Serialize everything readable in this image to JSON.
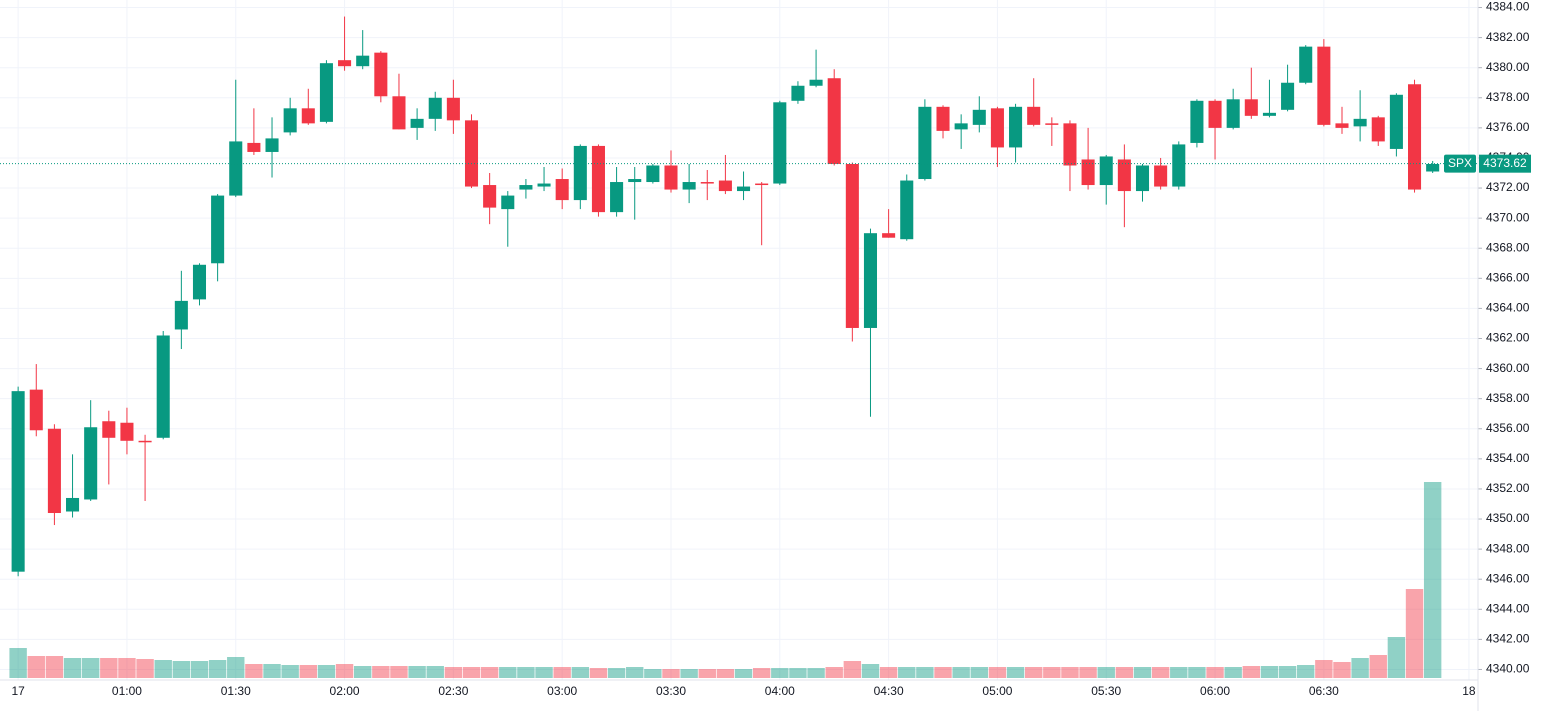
{
  "chart_data": {
    "type": "candlestick",
    "symbol": "SPX",
    "last_price": 4373.62,
    "last_price_label": "4373.62",
    "up_color": "#089981",
    "down_color": "#f23645",
    "grid": true,
    "xlim": [
      -1,
      80.5
    ],
    "ylim": [
      4339.3,
      4384.5
    ],
    "xticks": [
      {
        "value": 0,
        "label": "17"
      },
      {
        "value": 6,
        "label": "01:00"
      },
      {
        "value": 12,
        "label": "01:30"
      },
      {
        "value": 18,
        "label": "02:00"
      },
      {
        "value": 24,
        "label": "02:30"
      },
      {
        "value": 30,
        "label": "03:00"
      },
      {
        "value": 36,
        "label": "03:30"
      },
      {
        "value": 42,
        "label": "04:00"
      },
      {
        "value": 48,
        "label": "04:30"
      },
      {
        "value": 54,
        "label": "05:00"
      },
      {
        "value": 60,
        "label": "05:30"
      },
      {
        "value": 66,
        "label": "06:00"
      },
      {
        "value": 72,
        "label": "06:30"
      },
      {
        "value": 80,
        "label": "18"
      }
    ],
    "yticks": [
      {
        "value": 4340,
        "label": "4340.00"
      },
      {
        "value": 4342,
        "label": "4342.00"
      },
      {
        "value": 4344,
        "label": "4344.00"
      },
      {
        "value": 4346,
        "label": "4346.00"
      },
      {
        "value": 4348,
        "label": "4348.00"
      },
      {
        "value": 4350,
        "label": "4350.00"
      },
      {
        "value": 4352,
        "label": "4352.00"
      },
      {
        "value": 4354,
        "label": "4354.00"
      },
      {
        "value": 4356,
        "label": "4356.00"
      },
      {
        "value": 4358,
        "label": "4358.00"
      },
      {
        "value": 4360,
        "label": "4360.00"
      },
      {
        "value": 4362,
        "label": "4362.00"
      },
      {
        "value": 4364,
        "label": "4364.00"
      },
      {
        "value": 4366,
        "label": "4366.00"
      },
      {
        "value": 4368,
        "label": "4368.00"
      },
      {
        "value": 4370,
        "label": "4370.00"
      },
      {
        "value": 4372,
        "label": "4372.00"
      },
      {
        "value": 4374,
        "label": "4374.00"
      },
      {
        "value": 4376,
        "label": "4376.00"
      },
      {
        "value": 4378,
        "label": "4378.00"
      },
      {
        "value": 4380,
        "label": "4380.00"
      },
      {
        "value": 4382,
        "label": "4382.00"
      },
      {
        "value": 4384,
        "label": "4384.00"
      }
    ],
    "open": [
      4346.5,
      4358.6,
      4356,
      4350.5,
      4351.3,
      4356.5,
      4356.4,
      4355.2,
      4355.4,
      4362.6,
      4364.6,
      4367,
      4371.5,
      4375,
      4374.4,
      4375.7,
      4377.3,
      4376.4,
      4380.5,
      4380.1,
      4381,
      4378.1,
      4376,
      4376.6,
      4378,
      4376.5,
      4372.2,
      4370.6,
      4371.9,
      4372.1,
      4372.6,
      4371.2,
      4374.8,
      4370.4,
      4372.4,
      4372.4,
      4373.5,
      4371.9,
      4372.4,
      4372.5,
      4371.8,
      4372.3,
      4372.3,
      4377.8,
      4378.8,
      4379.3,
      4373.6,
      4362.7,
      4369,
      4368.6,
      4372.6,
      4377.4,
      4375.9,
      4376.2,
      4377.3,
      4374.7,
      4377.4,
      4376.3,
      4376.3,
      4373.9,
      4372.2,
      4373.9,
      4371.8,
      4373.5,
      4372.1,
      4375,
      4377.8,
      4376,
      4377.9,
      4376.8,
      4377.2,
      4379,
      4381.4,
      4376.3,
      4376.1,
      4376.7,
      4374.6,
      4378.9,
      4373.1
    ],
    "high": [
      4358.8,
      4360.3,
      4356.3,
      4354.3,
      4357.9,
      4357.2,
      4357.4,
      4355.6,
      4362.5,
      4366.5,
      4367,
      4371.6,
      4379.2,
      4377.3,
      4376.7,
      4378,
      4378.6,
      4380.5,
      4383.4,
      4382.5,
      4381.1,
      4379.6,
      4377.3,
      4378.4,
      4379.2,
      4376.9,
      4373,
      4371.8,
      4372.6,
      4373.4,
      4373.3,
      4374.9,
      4374.9,
      4373.4,
      4373.4,
      4373.6,
      4374.5,
      4373.6,
      4373.2,
      4374.2,
      4373.1,
      4372.4,
      4377.8,
      4379.1,
      4381.2,
      4379.9,
      4373.7,
      4369.3,
      4370.6,
      4372.9,
      4377.9,
      4377.5,
      4376.9,
      4378.1,
      4377.4,
      4377.6,
      4379.3,
      4376.7,
      4376.5,
      4376,
      4374.2,
      4374.9,
      4373.6,
      4374,
      4375.1,
      4377.9,
      4377.9,
      4378.6,
      4380,
      4379.2,
      4380.2,
      4381.5,
      4381.9,
      4377.4,
      4378.5,
      4376.8,
      4378.3,
      4379.2,
      4373.8
    ],
    "low": [
      4346.2,
      4355.5,
      4349.6,
      4350.1,
      4351.2,
      4352.3,
      4354.3,
      4351.2,
      4355.3,
      4361.3,
      4364.2,
      4365.8,
      4371.4,
      4374.2,
      4372.7,
      4375.5,
      4376.2,
      4376.3,
      4379.8,
      4379.9,
      4377.7,
      4375.9,
      4375.2,
      4375.8,
      4375.6,
      4372,
      4369.6,
      4368.1,
      4371.3,
      4371.8,
      4370.6,
      4370.6,
      4370.1,
      4370.1,
      4369.9,
      4372.3,
      4371.7,
      4371,
      4371.2,
      4371.6,
      4371.2,
      4368.2,
      4372.2,
      4377.6,
      4378.7,
      4373.5,
      4361.8,
      4356.8,
      4368.7,
      4368.5,
      4372.5,
      4375.3,
      4374.6,
      4375.7,
      4373.4,
      4373.7,
      4376.1,
      4374.8,
      4371.8,
      4371.9,
      4370.9,
      4369.4,
      4371.1,
      4371.9,
      4371.9,
      4374.7,
      4373.9,
      4375.9,
      4376.6,
      4376.7,
      4377.1,
      4378.9,
      4376.1,
      4375.6,
      4375.1,
      4374.8,
      4374.1,
      4371.7,
      4373
    ],
    "close": [
      4358.5,
      4355.9,
      4350.4,
      4351.4,
      4356.1,
      4355.4,
      4355.2,
      4355.1,
      4362.2,
      4364.5,
      4366.9,
      4371.5,
      4375.1,
      4374.4,
      4375.3,
      4377.3,
      4376.3,
      4380.3,
      4380.1,
      4380.8,
      4378.1,
      4375.9,
      4376.6,
      4378,
      4376.5,
      4372.1,
      4370.7,
      4371.5,
      4372.2,
      4372.3,
      4371.2,
      4374.8,
      4370.4,
      4372.4,
      4372.6,
      4373.5,
      4371.9,
      4372.4,
      4372.3,
      4371.8,
      4372.1,
      4372.2,
      4377.7,
      4378.8,
      4379.2,
      4373.6,
      4362.7,
      4369,
      4368.7,
      4372.5,
      4377.4,
      4375.8,
      4376.3,
      4377.2,
      4374.7,
      4377.4,
      4376.2,
      4376.2,
      4373.5,
      4372.2,
      4374.1,
      4371.8,
      4373.5,
      4372.1,
      4374.9,
      4377.8,
      4376,
      4377.9,
      4376.8,
      4377,
      4379,
      4381.4,
      4376.2,
      4376,
      4376.6,
      4375.1,
      4378.2,
      4371.9,
      4373.6
    ],
    "volume": [
      30,
      22,
      22,
      20,
      20,
      20,
      20,
      19,
      18,
      17,
      17,
      18,
      21,
      14,
      14,
      13,
      13,
      13,
      14,
      12,
      12,
      12,
      12,
      12,
      11,
      11,
      11,
      11,
      11,
      11,
      11,
      11,
      10,
      10,
      11,
      9,
      9,
      9,
      9,
      9,
      9,
      10,
      10,
      10,
      10,
      11,
      17,
      14,
      11,
      11,
      11,
      11,
      11,
      11,
      11,
      11,
      11,
      11,
      11,
      11,
      11,
      11,
      11,
      11,
      11,
      11,
      11,
      11,
      12,
      12,
      12,
      13,
      18,
      16,
      20,
      23,
      41,
      89,
      196
    ]
  }
}
